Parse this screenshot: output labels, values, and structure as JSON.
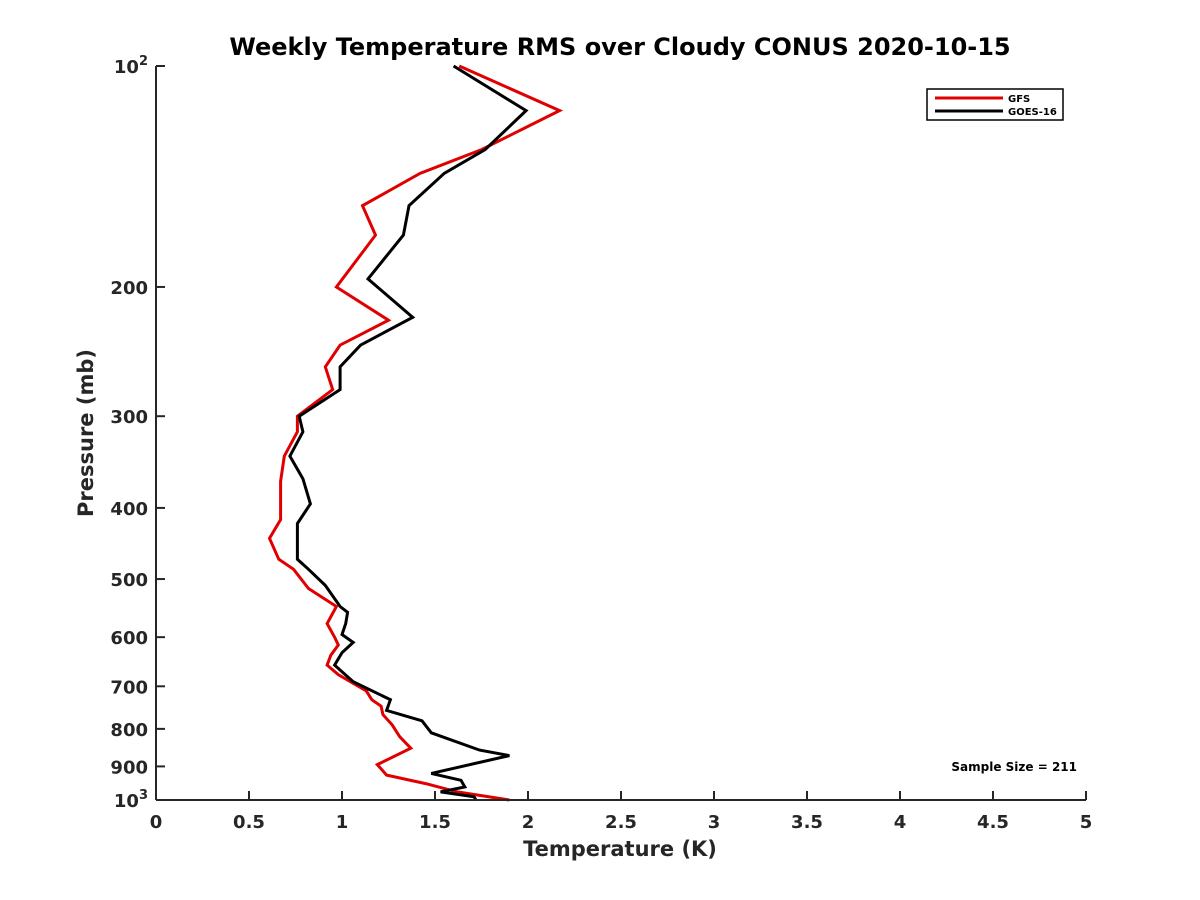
{
  "chart_data": {
    "type": "line",
    "title": "Weekly Temperature RMS over Cloudy CONUS 2020-10-15",
    "xlabel": "Temperature (K)",
    "ylabel": "Pressure (mb)",
    "xlim": [
      0,
      5
    ],
    "ylim": [
      100,
      1000
    ],
    "y_scale": "log",
    "y_reversed": true,
    "x_ticks": [
      "0",
      "0.5",
      "1",
      "1.5",
      "2",
      "2.5",
      "3",
      "3.5",
      "4",
      "4.5",
      "5"
    ],
    "y_ticks": [
      {
        "value": 100,
        "base": "10",
        "exp": "2"
      },
      {
        "value": 200,
        "label": "200"
      },
      {
        "value": 300,
        "label": "300"
      },
      {
        "value": 400,
        "label": "400"
      },
      {
        "value": 500,
        "label": "500"
      },
      {
        "value": 600,
        "label": "600"
      },
      {
        "value": 700,
        "label": "700"
      },
      {
        "value": 800,
        "label": "800"
      },
      {
        "value": 900,
        "label": "900"
      },
      {
        "value": 1000,
        "base": "10",
        "exp": "3"
      }
    ],
    "grid": false,
    "legend_position": "top-right",
    "annotation": "Sample Size = 211",
    "series": [
      {
        "name": "GFS",
        "color": "#e00000",
        "points": [
          [
            1.63,
            100
          ],
          [
            2.17,
            115
          ],
          [
            1.75,
            130
          ],
          [
            1.42,
            140
          ],
          [
            1.11,
            155
          ],
          [
            1.18,
            170
          ],
          [
            0.97,
            200
          ],
          [
            1.25,
            222
          ],
          [
            0.99,
            240
          ],
          [
            0.91,
            257
          ],
          [
            0.95,
            276
          ],
          [
            0.76,
            300
          ],
          [
            0.76,
            315
          ],
          [
            0.69,
            340
          ],
          [
            0.67,
            368
          ],
          [
            0.67,
            392
          ],
          [
            0.67,
            415
          ],
          [
            0.61,
            440
          ],
          [
            0.66,
            470
          ],
          [
            0.74,
            485
          ],
          [
            0.82,
            515
          ],
          [
            0.97,
            545
          ],
          [
            0.92,
            575
          ],
          [
            0.96,
            600
          ],
          [
            0.98,
            615
          ],
          [
            0.94,
            635
          ],
          [
            0.92,
            655
          ],
          [
            0.98,
            675
          ],
          [
            1.13,
            710
          ],
          [
            1.16,
            730
          ],
          [
            1.21,
            745
          ],
          [
            1.22,
            765
          ],
          [
            1.27,
            790
          ],
          [
            1.31,
            820
          ],
          [
            1.37,
            850
          ],
          [
            1.19,
            895
          ],
          [
            1.24,
            925
          ],
          [
            1.45,
            950
          ],
          [
            1.62,
            975
          ],
          [
            1.9,
            1000
          ]
        ]
      },
      {
        "name": "GOES-16",
        "color": "#000000",
        "points": [
          [
            1.6,
            100
          ],
          [
            1.99,
            115
          ],
          [
            1.77,
            130
          ],
          [
            1.55,
            140
          ],
          [
            1.36,
            155
          ],
          [
            1.33,
            170
          ],
          [
            1.14,
            195
          ],
          [
            1.38,
            220
          ],
          [
            1.1,
            240
          ],
          [
            0.99,
            257
          ],
          [
            0.99,
            276
          ],
          [
            0.77,
            300
          ],
          [
            0.79,
            315
          ],
          [
            0.72,
            340
          ],
          [
            0.79,
            365
          ],
          [
            0.83,
            395
          ],
          [
            0.76,
            420
          ],
          [
            0.76,
            440
          ],
          [
            0.76,
            470
          ],
          [
            0.82,
            485
          ],
          [
            0.91,
            510
          ],
          [
            0.99,
            545
          ],
          [
            1.03,
            555
          ],
          [
            1.02,
            575
          ],
          [
            1.0,
            595
          ],
          [
            1.06,
            610
          ],
          [
            1.0,
            630
          ],
          [
            0.96,
            655
          ],
          [
            1.06,
            690
          ],
          [
            1.26,
            730
          ],
          [
            1.24,
            755
          ],
          [
            1.43,
            780
          ],
          [
            1.48,
            810
          ],
          [
            1.74,
            855
          ],
          [
            1.9,
            870
          ],
          [
            1.48,
            920
          ],
          [
            1.64,
            940
          ],
          [
            1.66,
            960
          ],
          [
            1.53,
            975
          ],
          [
            1.71,
            990
          ],
          [
            1.72,
            1000
          ]
        ]
      }
    ]
  }
}
